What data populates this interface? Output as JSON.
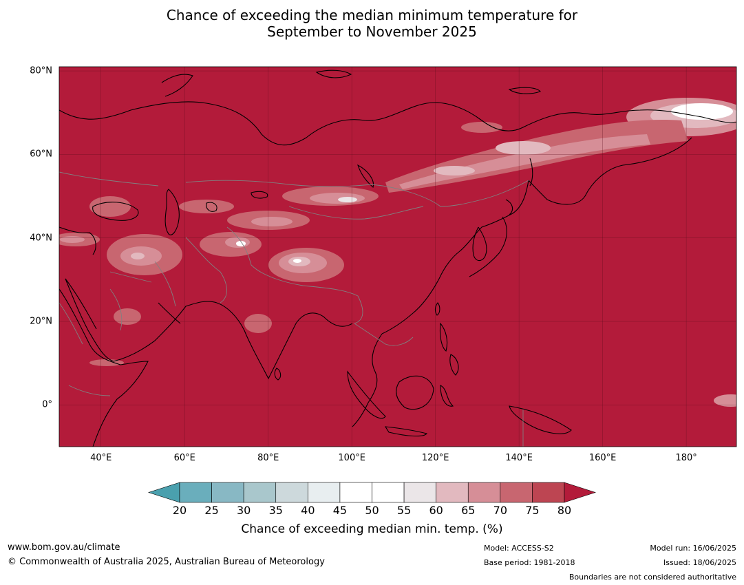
{
  "title": {
    "line1": "Chance of exceeding the median minimum temperature for",
    "line2": "September to November 2025"
  },
  "map": {
    "region_lon": [
      30,
      192
    ],
    "region_lat": [
      -10,
      81
    ],
    "background_color": "#b31b3a",
    "lat_ticks": [
      {
        "value": 80,
        "label": "80°N"
      },
      {
        "value": 60,
        "label": "60°N"
      },
      {
        "value": 40,
        "label": "40°N"
      },
      {
        "value": 20,
        "label": "20°N"
      },
      {
        "value": 0,
        "label": "0°"
      }
    ],
    "lon_ticks": [
      {
        "value": 40,
        "label": "40°E"
      },
      {
        "value": 60,
        "label": "60°E"
      },
      {
        "value": 80,
        "label": "80°E"
      },
      {
        "value": 100,
        "label": "100°E"
      },
      {
        "value": 120,
        "label": "120°E"
      },
      {
        "value": 140,
        "label": "140°E"
      },
      {
        "value": 160,
        "label": "160°E"
      },
      {
        "value": 180,
        "label": "180°"
      }
    ]
  },
  "colorbar": {
    "labels": [
      "20",
      "25",
      "30",
      "35",
      "40",
      "45",
      "50",
      "55",
      "60",
      "65",
      "70",
      "75",
      "80"
    ],
    "under_color": "#4aa0ae",
    "over_color": "#b31b3a",
    "colors": [
      "#6aaebc",
      "#88b8c4",
      "#a9c7cc",
      "#cdd9dc",
      "#e8eef0",
      "#ffffff",
      "#ffffff",
      "#ebe6e8",
      "#e2b9bf",
      "#d68e97",
      "#c86670",
      "#bd4552"
    ],
    "title": "Chance of exceeding median min. temp. (%)"
  },
  "footer": {
    "website": "www.bom.gov.au/climate",
    "copyright": "© Commonwealth of Australia 2025, Australian Bureau of Meteorology",
    "model": "Model: ACCESS-S2",
    "base_period": "Base period: 1981-2018",
    "model_run": "Model run: 16/06/2025",
    "issued": "Issued: 18/06/2025",
    "disclaimer": "Boundaries are not considered authoritative"
  }
}
